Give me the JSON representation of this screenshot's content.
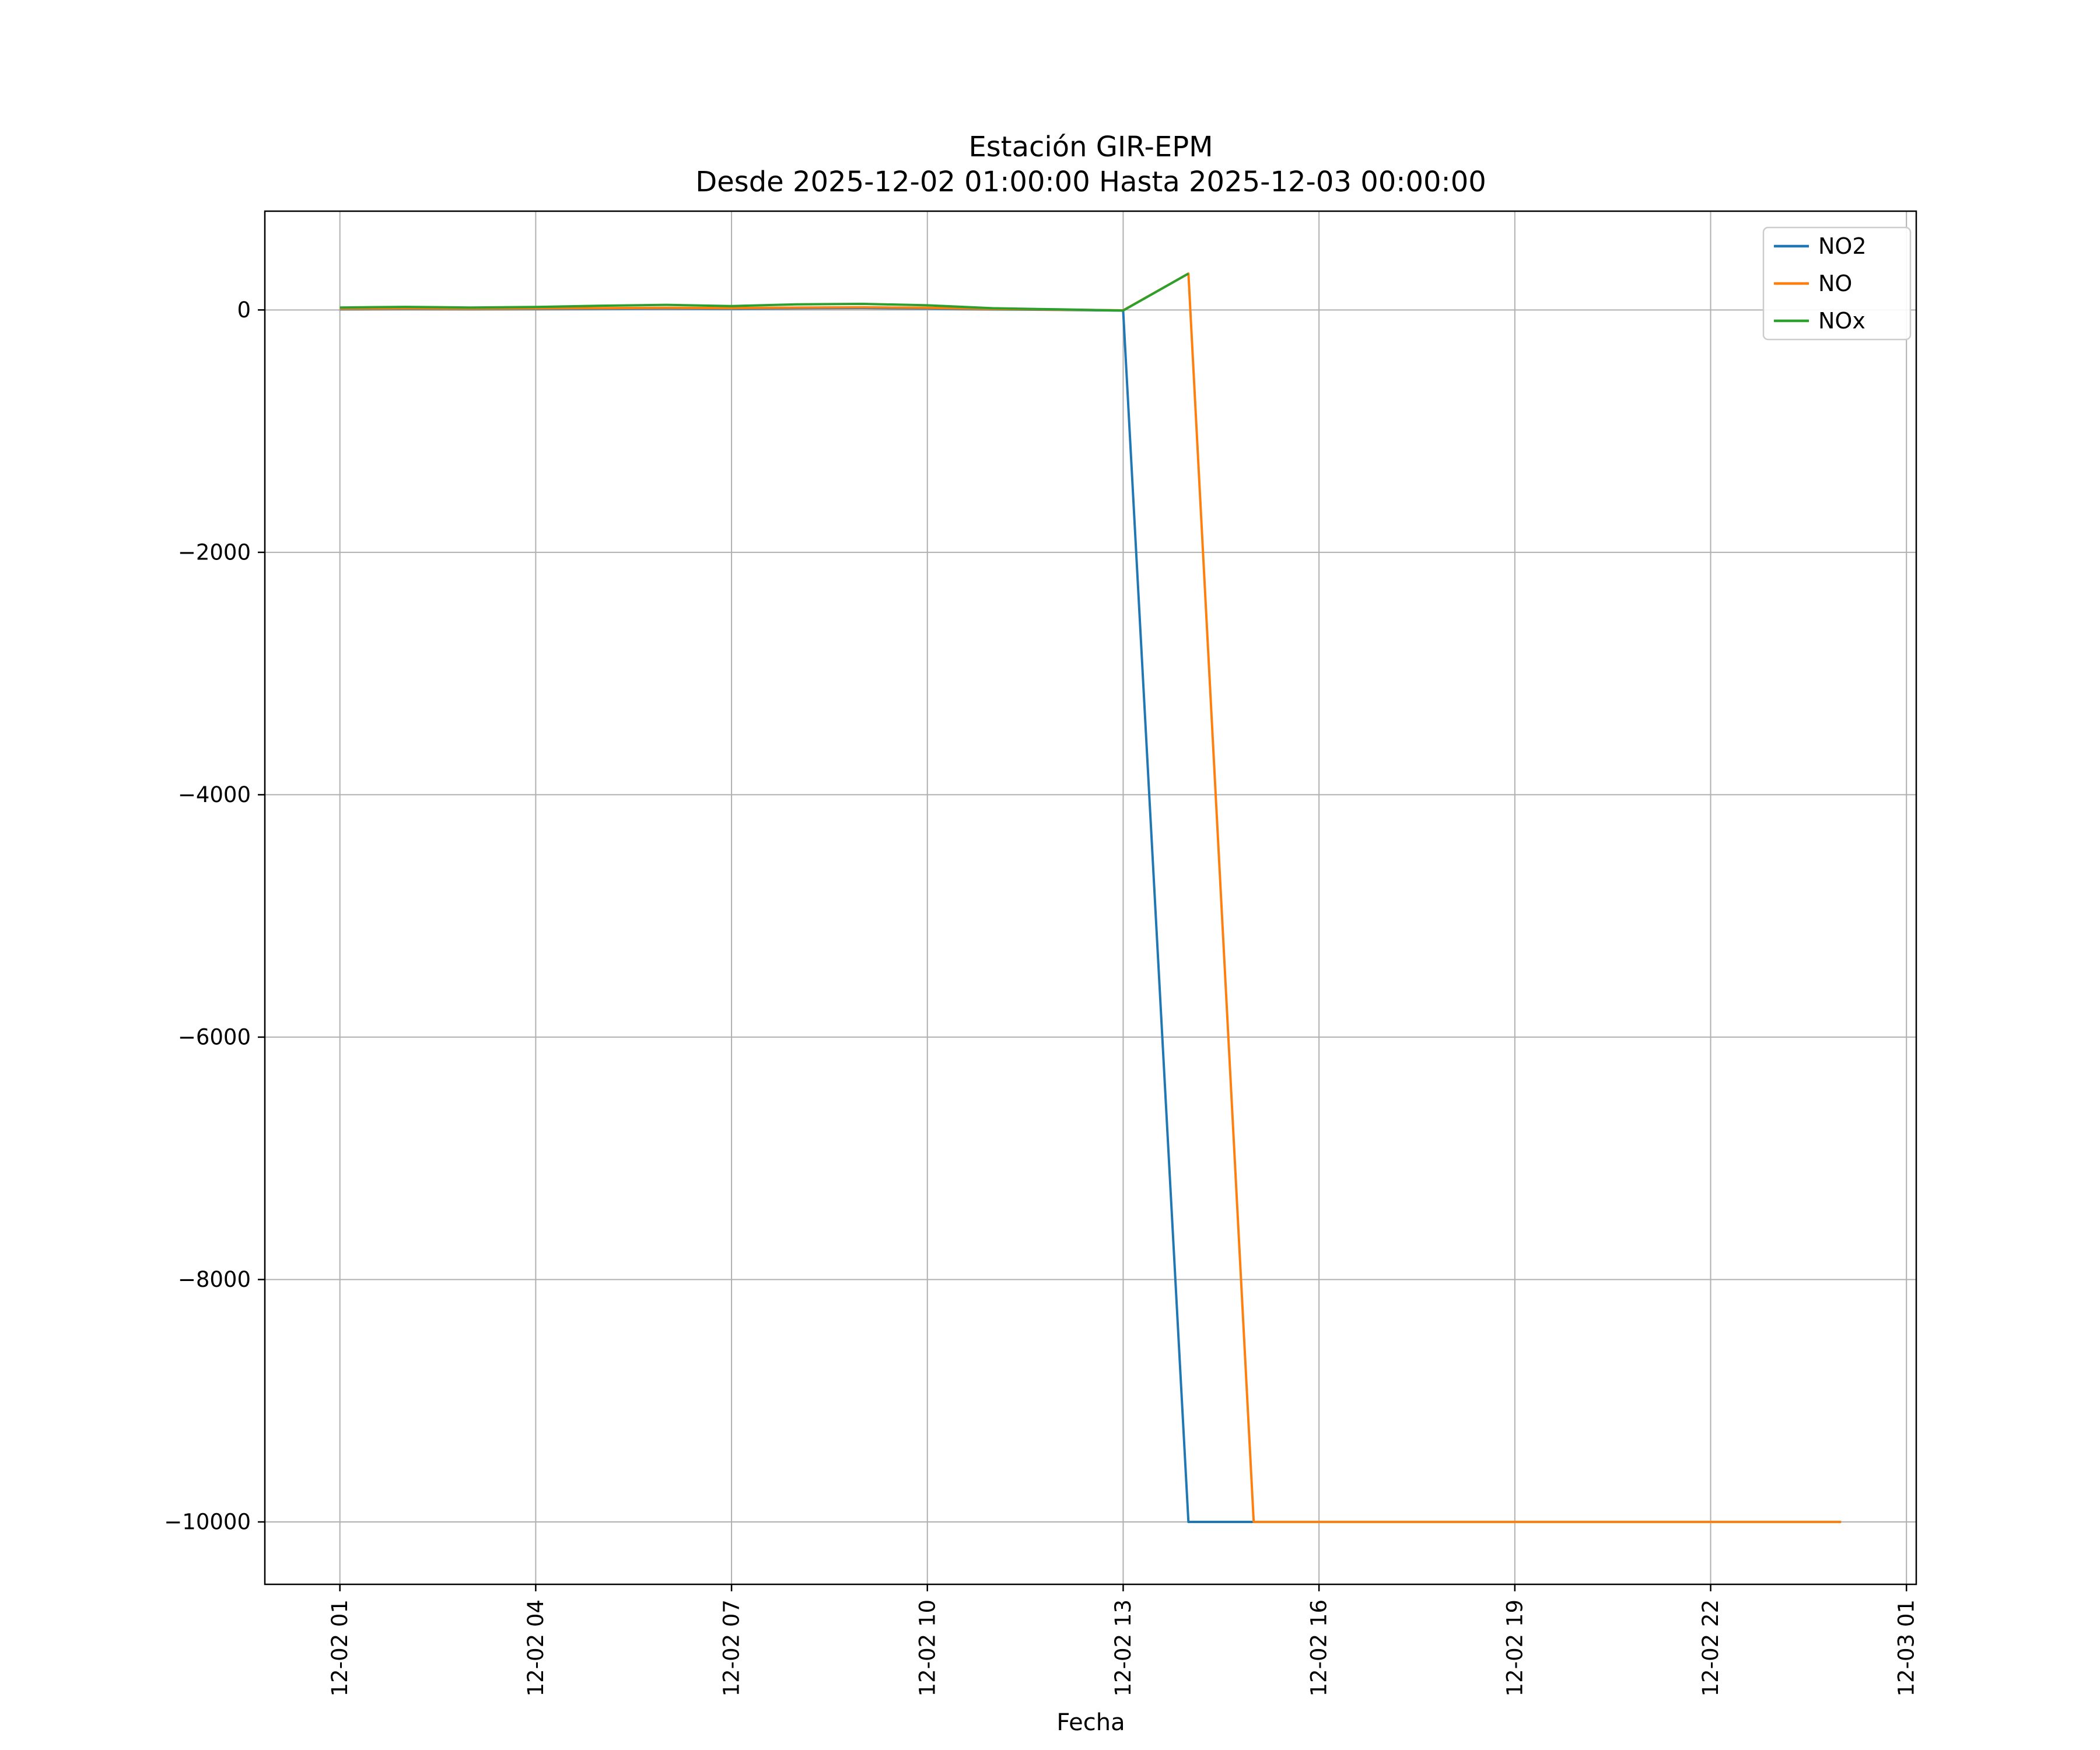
{
  "figure": {
    "title": "Estación GIR-EPM",
    "subtitle": "Desde 2025-12-02 01:00:00 Hasta 2025-12-03 00:00:00",
    "xlabel": "Fecha"
  },
  "chart_data": {
    "type": "line",
    "title": "Estación GIR-EPM",
    "subtitle": "Desde 2025-12-02 01:00:00 Hasta 2025-12-03 00:00:00",
    "xlabel": "Fecha",
    "ylabel": "",
    "grid": true,
    "legend_position": "top-right",
    "xlim_hours": [
      -0.15,
      25.15
    ],
    "ylim": [
      -10515,
      815
    ],
    "x_hours": [
      1,
      2,
      3,
      4,
      5,
      6,
      7,
      8,
      9,
      10,
      11,
      12,
      13,
      14,
      15,
      16,
      17,
      18,
      19,
      20,
      21,
      22,
      23,
      24
    ],
    "xtick_hours": [
      1,
      4,
      7,
      10,
      13,
      16,
      19,
      22,
      25
    ],
    "xtick_labels": [
      "12-02 01",
      "12-02 04",
      "12-02 07",
      "12-02 10",
      "12-02 13",
      "12-02 16",
      "12-02 19",
      "12-02 22",
      "12-03 01"
    ],
    "ytick_values": [
      0,
      -2000,
      -4000,
      -6000,
      -8000,
      -10000
    ],
    "ytick_labels": [
      "0",
      "−2000",
      "−4000",
      "−6000",
      "−8000",
      "−10000"
    ],
    "colors": {
      "grid": "#b0b0b0",
      "frame": "#000000",
      "legend_border": "#cccccc"
    },
    "series": [
      {
        "name": "NO2",
        "color": "#1f77b4",
        "values": [
          5,
          8,
          6,
          8,
          10,
          12,
          10,
          14,
          16,
          12,
          4,
          0,
          -5,
          -10000,
          -10000,
          null,
          null,
          null,
          null,
          null,
          null,
          null,
          null,
          null
        ]
      },
      {
        "name": "NO",
        "color": "#ff7f0e",
        "values": [
          10,
          12,
          10,
          12,
          15,
          18,
          15,
          20,
          22,
          18,
          8,
          2,
          -3,
          300,
          -10000,
          -10000,
          -10000,
          -10000,
          -10000,
          -10000,
          -10000,
          -10000,
          -10000,
          -10000
        ]
      },
      {
        "name": "NOx",
        "color": "#2ca02c",
        "values": [
          20,
          25,
          20,
          24,
          35,
          42,
          32,
          46,
          50,
          38,
          14,
          5,
          -5,
          300,
          null,
          null,
          null,
          null,
          null,
          null,
          null,
          null,
          null,
          null
        ]
      }
    ]
  }
}
